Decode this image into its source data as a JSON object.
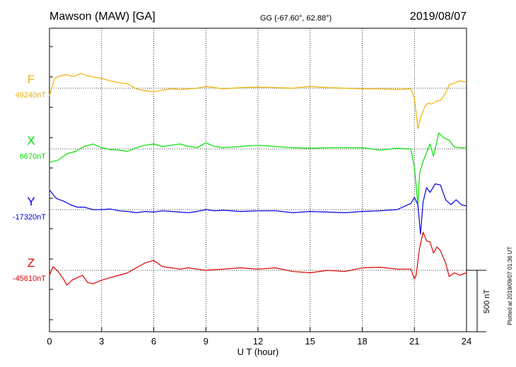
{
  "header": {
    "station": "Mawson (MAW)  [GA]",
    "coords": "GG (-67.60°,  62.88°)",
    "date": "2019/08/07"
  },
  "footer": {
    "plotted": "Plotted at 2019/09/07 01:36 UT"
  },
  "chart_data": {
    "type": "line",
    "xlabel": "U T (hour)",
    "xlim": [
      0,
      24
    ],
    "xticks": [
      "0",
      "3",
      "6",
      "9",
      "12",
      "15",
      "18",
      "21",
      "24"
    ],
    "grid": true,
    "scale_bar": {
      "label": "500 nT",
      "value_nT": 500
    },
    "series": [
      {
        "name": "F",
        "baseline_label": "49240nT",
        "color": "#f0b000",
        "x": [
          0,
          0.3,
          0.6,
          1,
          1.4,
          1.8,
          2.2,
          2.6,
          3,
          3.5,
          4,
          4.5,
          5,
          5.5,
          6,
          6.5,
          7,
          7.5,
          8,
          8.5,
          9,
          9.5,
          10,
          11,
          12,
          13,
          14,
          15,
          16,
          17,
          18,
          19,
          20,
          20.8,
          21,
          21.2,
          21.4,
          21.6,
          21.8,
          22,
          22.2,
          22.5,
          22.8,
          23,
          23.3,
          23.6,
          24
        ],
        "y": [
          -60,
          80,
          100,
          110,
          95,
          120,
          100,
          90,
          80,
          60,
          45,
          35,
          -5,
          -20,
          -30,
          -15,
          -5,
          -10,
          -5,
          0,
          15,
          5,
          -5,
          5,
          10,
          5,
          0,
          15,
          5,
          0,
          -5,
          -5,
          -10,
          -5,
          -80,
          -330,
          -220,
          -150,
          -120,
          -130,
          -110,
          -100,
          -40,
          30,
          40,
          60,
          50
        ]
      },
      {
        "name": "X",
        "baseline_label": "6670nT",
        "color": "#00e000",
        "x": [
          0,
          0.5,
          1,
          1.5,
          2,
          2.5,
          3,
          3.5,
          4,
          4.5,
          5,
          5.5,
          6,
          6.5,
          7,
          7.5,
          8,
          8.5,
          9,
          9.5,
          10,
          11,
          12,
          13,
          14,
          15,
          16,
          17,
          18,
          19,
          20,
          20.8,
          21,
          21.1,
          21.2,
          21.3,
          21.5,
          21.7,
          21.9,
          22.1,
          22.4,
          22.7,
          23,
          23.3,
          23.6,
          24
        ],
        "y": [
          -110,
          -90,
          -40,
          -20,
          20,
          40,
          10,
          -5,
          -10,
          -20,
          10,
          30,
          40,
          20,
          30,
          40,
          20,
          10,
          50,
          20,
          10,
          20,
          30,
          20,
          10,
          5,
          10,
          10,
          10,
          -10,
          5,
          0,
          -150,
          -300,
          -460,
          -200,
          -100,
          -30,
          40,
          -60,
          130,
          90,
          70,
          15,
          10,
          10
        ]
      },
      {
        "name": "Y",
        "baseline_label": "-17320nT",
        "color": "#0000e0",
        "x": [
          0,
          0.4,
          0.8,
          1.2,
          1.6,
          2,
          2.5,
          3,
          3.5,
          4,
          4.5,
          5,
          5.5,
          6,
          6.5,
          7,
          7.5,
          8,
          8.5,
          9,
          9.5,
          10,
          11,
          12,
          13,
          14,
          15,
          16,
          17,
          18,
          19,
          20,
          20.8,
          21,
          21.2,
          21.35,
          21.5,
          21.7,
          21.9,
          22.2,
          22.5,
          22.8,
          23.1,
          23.4,
          23.7,
          24
        ],
        "y": [
          160,
          90,
          70,
          40,
          20,
          20,
          0,
          0,
          5,
          -10,
          -15,
          -25,
          -15,
          -20,
          -10,
          -15,
          -20,
          -25,
          -15,
          0,
          -10,
          -5,
          -15,
          -10,
          -10,
          -25,
          -15,
          -20,
          -25,
          -15,
          -10,
          0,
          50,
          100,
          40,
          -200,
          60,
          180,
          140,
          210,
          200,
          80,
          40,
          80,
          40,
          30
        ]
      },
      {
        "name": "Z",
        "baseline_label": "-45610nT",
        "color": "#e00000",
        "x": [
          0,
          0.2,
          0.5,
          0.8,
          1,
          1.3,
          1.6,
          1.9,
          2.2,
          2.5,
          3,
          3.5,
          4,
          4.5,
          5,
          5.5,
          6,
          6.5,
          7,
          7.5,
          8,
          8.5,
          9,
          9.5,
          10,
          11,
          12,
          13,
          14,
          15,
          16,
          17,
          18,
          19,
          20,
          20.8,
          21,
          21.1,
          21.3,
          21.5,
          21.7,
          21.9,
          22.1,
          22.3,
          22.5,
          22.8,
          23,
          23.3,
          23.6,
          24
        ],
        "y": [
          -40,
          30,
          -10,
          -70,
          -120,
          -80,
          -60,
          -40,
          -100,
          -110,
          -80,
          -60,
          -40,
          -20,
          20,
          60,
          80,
          30,
          20,
          10,
          20,
          10,
          0,
          5,
          10,
          20,
          10,
          20,
          -10,
          -20,
          0,
          -10,
          20,
          25,
          10,
          10,
          -70,
          -40,
          180,
          310,
          240,
          230,
          140,
          190,
          160,
          60,
          -50,
          -20,
          -40,
          -20
        ]
      }
    ]
  }
}
